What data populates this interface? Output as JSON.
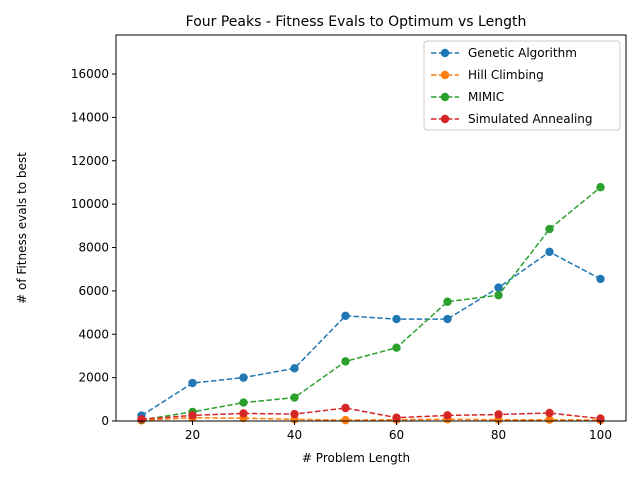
{
  "chart_data": {
    "type": "line",
    "title": "Four Peaks - Fitness Evals to Optimum vs Length",
    "xlabel": "# Problem Length",
    "ylabel": "# of Fitness evals to best",
    "xlim": [
      5,
      105
    ],
    "ylim": [
      0,
      17800
    ],
    "xticks": [
      20,
      40,
      60,
      80,
      100
    ],
    "yticks": [
      0,
      2000,
      4000,
      6000,
      8000,
      10000,
      12000,
      14000,
      16000
    ],
    "grid": false,
    "legend_position": "top-right",
    "x": [
      10,
      20,
      30,
      40,
      50,
      60,
      70,
      80,
      90,
      100
    ],
    "series": [
      {
        "name": "Genetic Algorithm",
        "color": "#1f77b4",
        "values": [
          250,
          1750,
          2000,
          2430,
          4850,
          4700,
          4700,
          6150,
          7800,
          6550
        ]
      },
      {
        "name": "Hill Climbing",
        "color": "#ff7f0e",
        "values": [
          30,
          150,
          130,
          80,
          40,
          60,
          80,
          60,
          60,
          40
        ]
      },
      {
        "name": "MIMIC",
        "color": "#2ca02c",
        "values": [
          50,
          420,
          850,
          1080,
          2750,
          3380,
          5500,
          5800,
          8850,
          10780
        ]
      },
      {
        "name": "Simulated Annealing",
        "color": "#d62728",
        "values": [
          80,
          260,
          350,
          320,
          600,
          150,
          260,
          300,
          370,
          110
        ]
      }
    ]
  }
}
